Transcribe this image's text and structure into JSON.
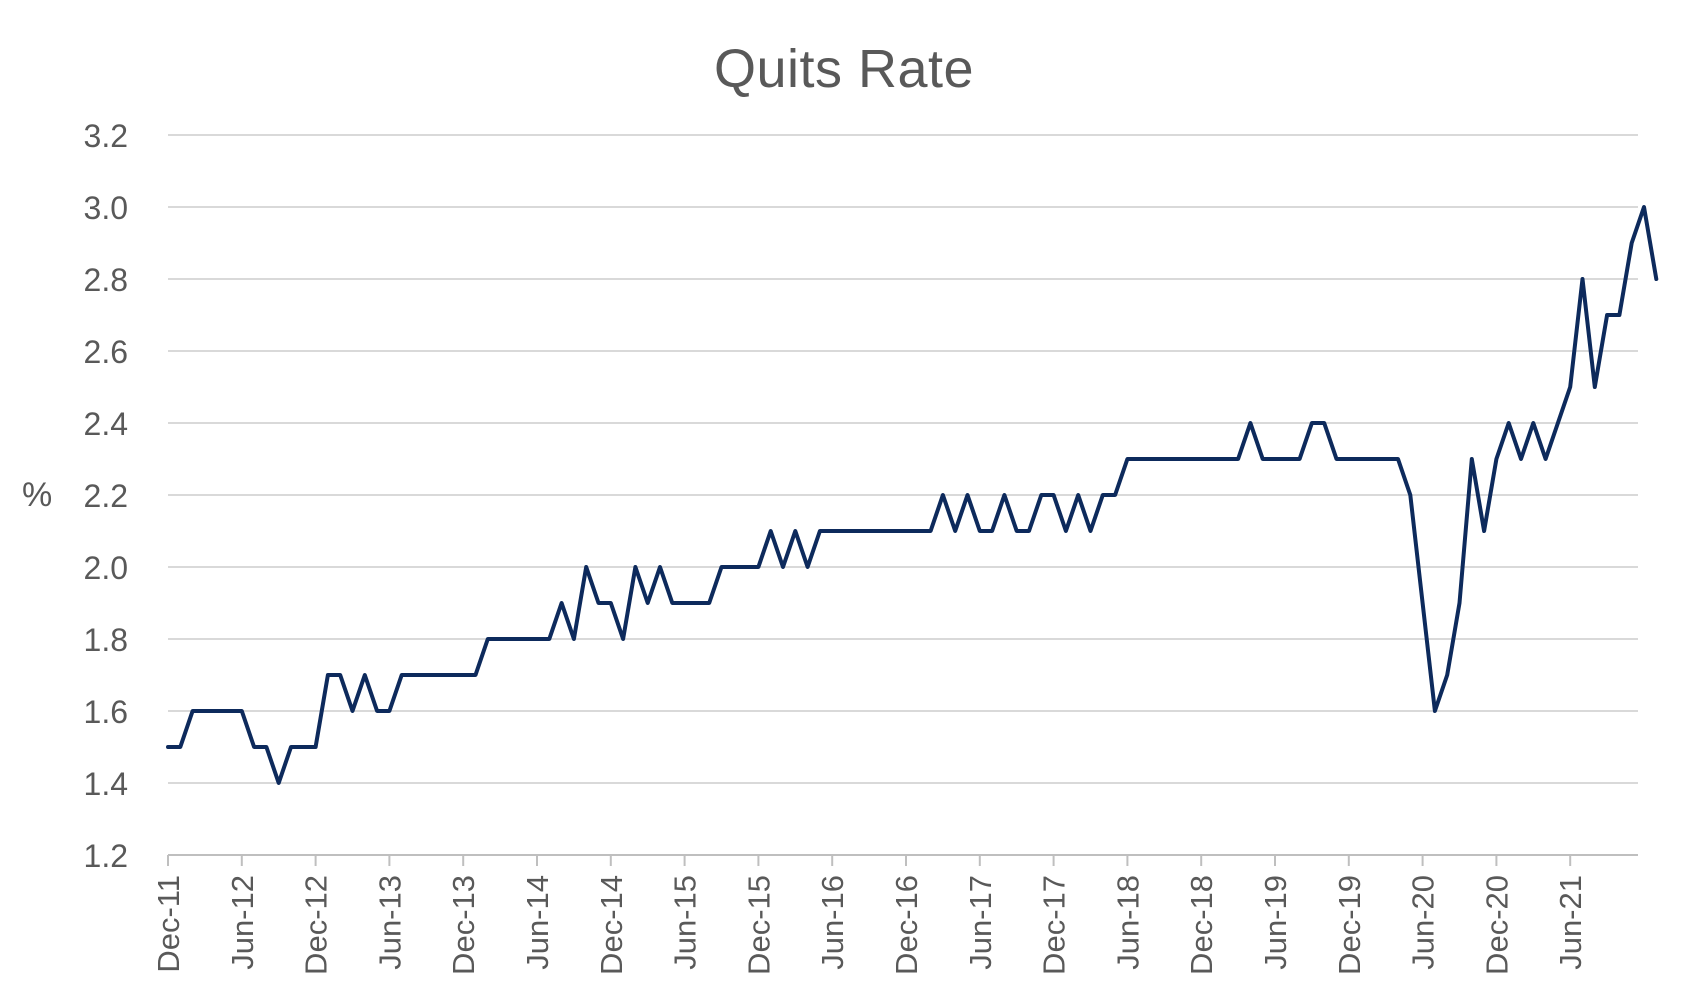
{
  "chart_data": {
    "type": "line",
    "title": "Quits Rate",
    "xlabel": "",
    "ylabel": "%",
    "ylim": [
      1.2,
      3.2
    ],
    "yticks": [
      "1.2",
      "1.4",
      "1.6",
      "1.8",
      "2.0",
      "2.2",
      "2.4",
      "2.6",
      "2.8",
      "3.0",
      "3.2"
    ],
    "xticks": [
      "Dec-11",
      "Jun-12",
      "Dec-12",
      "Jun-13",
      "Dec-13",
      "Jun-14",
      "Dec-14",
      "Jun-15",
      "Dec-15",
      "Jun-16",
      "Dec-16",
      "Jun-17",
      "Dec-17",
      "Jun-18",
      "Dec-18",
      "Jun-19",
      "Dec-19",
      "Jun-20",
      "Dec-20",
      "Jun-21"
    ],
    "x_start": "Dec-11",
    "grid": true,
    "legend": "none",
    "series": [
      {
        "color": "#0d2a5c",
        "values": [
          1.5,
          1.5,
          1.6,
          1.6,
          1.6,
          1.6,
          1.6,
          1.5,
          1.5,
          1.4,
          1.5,
          1.5,
          1.5,
          1.7,
          1.7,
          1.6,
          1.7,
          1.6,
          1.6,
          1.7,
          1.7,
          1.7,
          1.7,
          1.7,
          1.7,
          1.7,
          1.8,
          1.8,
          1.8,
          1.8,
          1.8,
          1.8,
          1.9,
          1.8,
          2.0,
          1.9,
          1.9,
          1.8,
          2.0,
          1.9,
          2.0,
          1.9,
          1.9,
          1.9,
          1.9,
          2.0,
          2.0,
          2.0,
          2.0,
          2.1,
          2.0,
          2.1,
          2.0,
          2.1,
          2.1,
          2.1,
          2.1,
          2.1,
          2.1,
          2.1,
          2.1,
          2.1,
          2.1,
          2.2,
          2.1,
          2.2,
          2.1,
          2.1,
          2.2,
          2.1,
          2.1,
          2.2,
          2.2,
          2.1,
          2.2,
          2.1,
          2.2,
          2.2,
          2.3,
          2.3,
          2.3,
          2.3,
          2.3,
          2.3,
          2.3,
          2.3,
          2.3,
          2.3,
          2.4,
          2.3,
          2.3,
          2.3,
          2.3,
          2.4,
          2.4,
          2.3,
          2.3,
          2.3,
          2.3,
          2.3,
          2.3,
          2.2,
          1.9,
          1.6,
          1.7,
          1.9,
          2.3,
          2.1,
          2.3,
          2.4,
          2.3,
          2.4,
          2.3,
          2.4,
          2.5,
          2.8,
          2.5,
          2.7,
          2.7,
          2.9,
          3.0,
          2.8
        ]
      }
    ]
  }
}
